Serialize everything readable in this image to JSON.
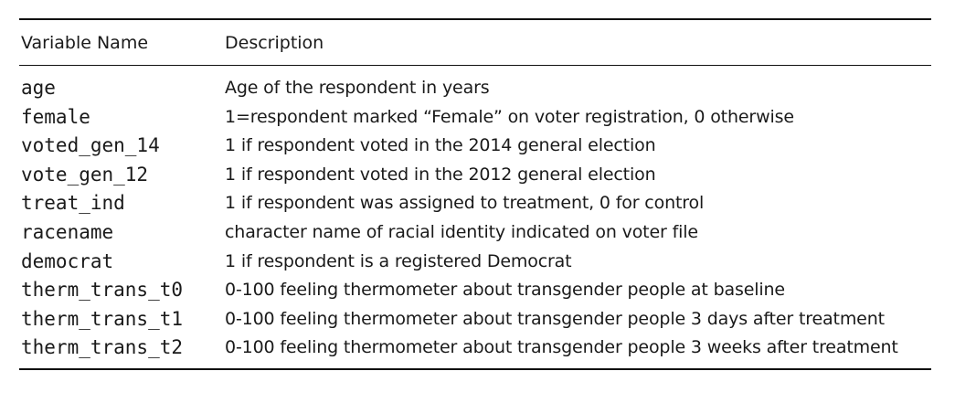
{
  "table": {
    "headers": {
      "variable": "Variable Name",
      "description": "Description"
    },
    "rows": [
      {
        "variable": "age",
        "description": "Age of the respondent in years"
      },
      {
        "variable": "female",
        "description": "1=respondent marked “Female” on voter registration, 0 otherwise"
      },
      {
        "variable": "voted_gen_14",
        "description": "1 if respondent voted in the 2014 general election"
      },
      {
        "variable": "vote_gen_12",
        "description": "1 if respondent voted in the 2012 general election"
      },
      {
        "variable": "treat_ind",
        "description": "1 if respondent was assigned to treatment, 0 for control"
      },
      {
        "variable": "racename",
        "description": "character name of racial identity indicated on voter file"
      },
      {
        "variable": "democrat",
        "description": "1 if respondent is a registered Democrat"
      },
      {
        "variable": "therm_trans_t0",
        "description": "0-100 feeling thermometer about transgender people at baseline"
      },
      {
        "variable": "therm_trans_t1",
        "description": "0-100 feeling thermometer about transgender people 3 days after treatment"
      },
      {
        "variable": "therm_trans_t2",
        "description": "0-100 feeling thermometer about transgender people 3 weeks after treatment"
      }
    ]
  }
}
